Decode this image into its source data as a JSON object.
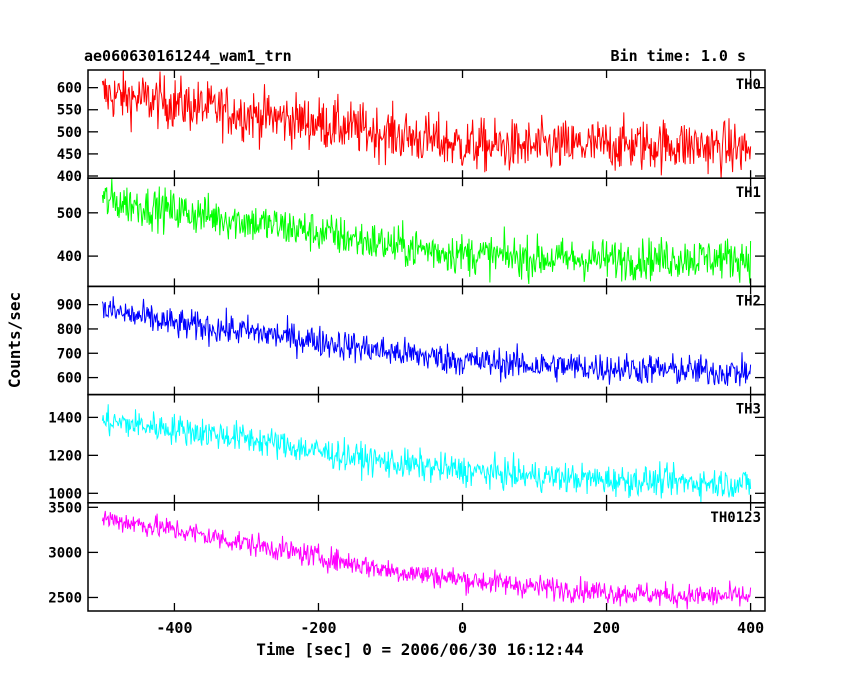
{
  "header": {
    "title": "ae060630161244_wam1_trn",
    "bin_time": "Bin time: 1.0 s"
  },
  "chart_data": {
    "type": "line",
    "title": "ae060630161244_wam1_trn",
    "xlabel": "Time [sec] 0 = 2006/06/30 16:12:44",
    "ylabel": "Counts/sec",
    "xlim": [
      -520,
      420
    ],
    "x_ticks": [
      -400,
      -200,
      0,
      200,
      400
    ],
    "x_range_data": [
      -500,
      400
    ],
    "grid": false,
    "panels": [
      {
        "name": "TH0",
        "color": "#ff0000",
        "ylim": [
          395,
          640
        ],
        "y_ticks": [
          400,
          450,
          500,
          550,
          600
        ],
        "x": [
          -500,
          -400,
          -300,
          -200,
          -100,
          0,
          100,
          200,
          300,
          400
        ],
        "values": [
          585,
          565,
          540,
          520,
          495,
          470,
          465,
          470,
          470,
          460
        ],
        "noise": 30
      },
      {
        "name": "TH1",
        "color": "#00ff00",
        "ylim": [
          330,
          580
        ],
        "y_ticks": [
          400,
          500
        ],
        "x": [
          -500,
          -400,
          -300,
          -200,
          -100,
          0,
          100,
          200,
          300,
          400
        ],
        "values": [
          530,
          505,
          480,
          455,
          425,
          405,
          395,
          392,
          395,
          395
        ],
        "noise": 24
      },
      {
        "name": "TH2",
        "color": "#0000ff",
        "ylim": [
          530,
          975
        ],
        "y_ticks": [
          600,
          700,
          800,
          900
        ],
        "x": [
          -500,
          -400,
          -300,
          -200,
          -100,
          0,
          100,
          200,
          300,
          400
        ],
        "values": [
          880,
          820,
          790,
          750,
          705,
          670,
          650,
          640,
          630,
          620
        ],
        "noise": 32
      },
      {
        "name": "TH3",
        "color": "#00ffff",
        "ylim": [
          950,
          1520
        ],
        "y_ticks": [
          1000,
          1200,
          1400
        ],
        "x": [
          -500,
          -400,
          -300,
          -200,
          -100,
          0,
          100,
          200,
          300,
          400
        ],
        "values": [
          1380,
          1340,
          1290,
          1220,
          1160,
          1120,
          1090,
          1070,
          1060,
          1050
        ],
        "noise": 40
      },
      {
        "name": "TH0123",
        "color": "#ff00ff",
        "ylim": [
          2350,
          3550
        ],
        "y_ticks": [
          2500,
          3000,
          3500
        ],
        "x": [
          -500,
          -400,
          -300,
          -200,
          -100,
          0,
          100,
          200,
          300,
          400
        ],
        "values": [
          3380,
          3250,
          3100,
          2950,
          2800,
          2700,
          2620,
          2560,
          2520,
          2510
        ],
        "noise": 65
      }
    ]
  }
}
